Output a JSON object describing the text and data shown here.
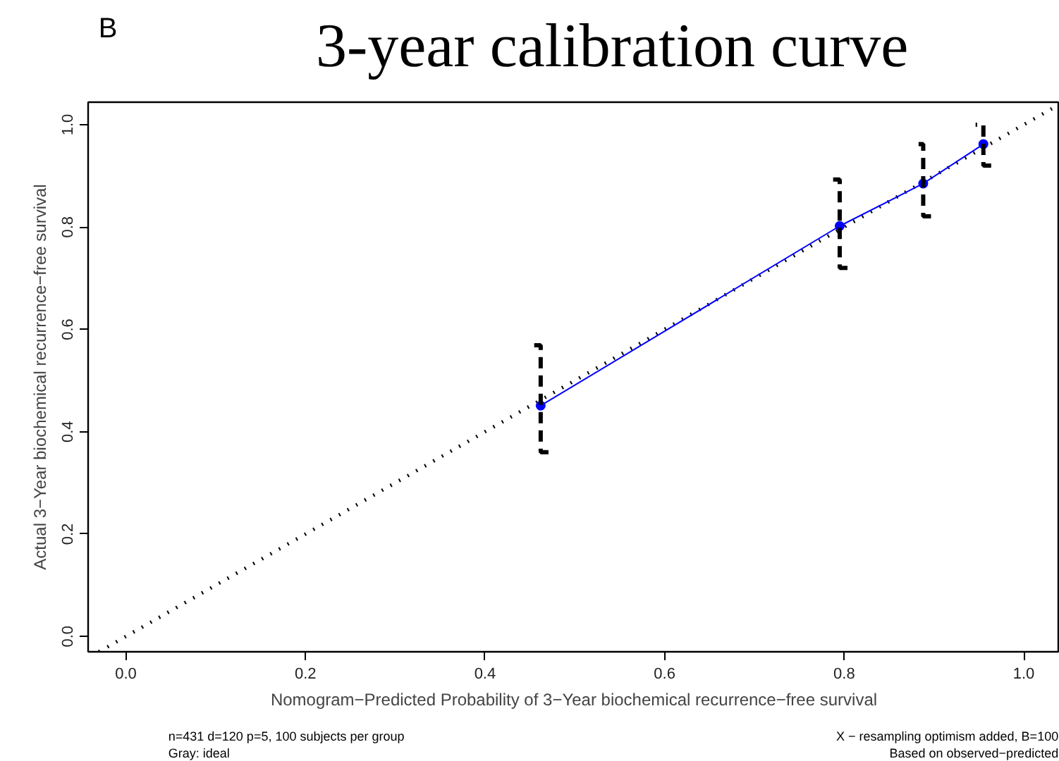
{
  "chart_data": {
    "type": "line",
    "title": "3-year calibration curve",
    "xlabel": "Nomogram−Predicted Probability of 3−Year biochemical recurrence−free survival",
    "ylabel": "Actual 3−Year biochemical recurrence−free survival",
    "annotations": [
      "B",
      "n=431 d=120 p=5, 100 subjects per group",
      "Gray: ideal",
      "X − resampling optimism added, B=100",
      "Based on observed−predicted"
    ],
    "series": [
      {
        "color": "#000000",
        "line_style": "dotted",
        "marker": "none",
        "x": [
          -0.03,
          1.04
        ],
        "values": [
          -0.03,
          1.04
        ]
      },
      {
        "color": "#0000ff",
        "line_style": "solid",
        "marker": "circle",
        "x": [
          0.462,
          0.795,
          0.888,
          0.955
        ],
        "values": [
          0.451,
          0.802,
          0.885,
          0.962
        ],
        "errors": [
          [
            0.36,
            0.569
          ],
          [
            0.72,
            0.893
          ],
          [
            0.821,
            0.962
          ],
          [
            0.92,
            1.0
          ]
        ]
      }
    ],
    "xlim": [
      -0.042,
      1.04
    ],
    "ylim": [
      -0.03,
      1.044
    ],
    "xticks": [
      {
        "value": 0,
        "label": "0.0"
      },
      {
        "value": 0.2,
        "label": "0.2"
      },
      {
        "value": 0.4,
        "label": "0.4"
      },
      {
        "value": 0.6,
        "label": "0.6"
      },
      {
        "value": 0.8,
        "label": "0.8"
      },
      {
        "value": 1,
        "label": "1.0"
      }
    ],
    "yticks": [
      {
        "value": 0,
        "label": "0.0"
      },
      {
        "value": 0.2,
        "label": "0.2"
      },
      {
        "value": 0.4,
        "label": "0.4"
      },
      {
        "value": 0.6,
        "label": "0.6"
      },
      {
        "value": 0.8,
        "label": "0.8"
      },
      {
        "value": 1,
        "label": "1.0"
      }
    ],
    "grid": false
  }
}
